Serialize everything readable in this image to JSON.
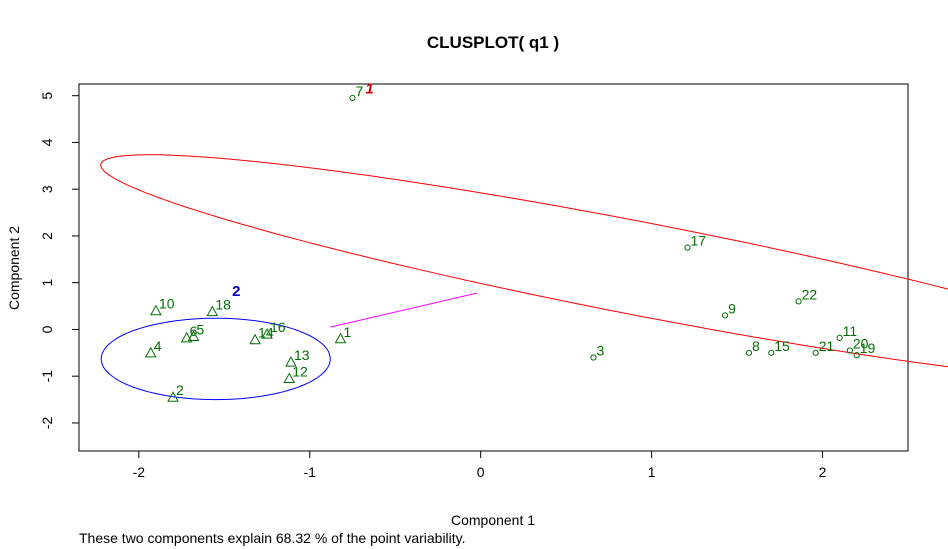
{
  "chart_data": {
    "type": "scatter",
    "title": "CLUSPLOT( q1 )",
    "xlabel": "Component 1",
    "ylabel": "Component 2",
    "xlim": [
      -2.35,
      2.5
    ],
    "ylim": [
      -2.6,
      5.25
    ],
    "xticks": [
      -2,
      -1,
      0,
      1,
      2
    ],
    "yticks": [
      -2,
      -1,
      0,
      1,
      2,
      3,
      4,
      5
    ],
    "points": [
      {
        "label": "1",
        "x": -0.82,
        "y": -0.2,
        "cluster": 2
      },
      {
        "label": "2",
        "x": -1.8,
        "y": -1.45,
        "cluster": 2
      },
      {
        "label": "3",
        "x": 0.66,
        "y": -0.6,
        "cluster": 1
      },
      {
        "label": "4",
        "x": -1.93,
        "y": -0.5,
        "cluster": 2
      },
      {
        "label": "5",
        "x": -1.68,
        "y": -0.15,
        "cluster": 2
      },
      {
        "label": "6",
        "x": -1.72,
        "y": -0.18,
        "cluster": 2
      },
      {
        "label": "7",
        "x": -0.75,
        "y": 4.95,
        "cluster": 1
      },
      {
        "label": "8",
        "x": 1.57,
        "y": -0.5,
        "cluster": 1
      },
      {
        "label": "9",
        "x": 1.43,
        "y": 0.3,
        "cluster": 1
      },
      {
        "label": "10",
        "x": -1.9,
        "y": 0.4,
        "cluster": 2
      },
      {
        "label": "11",
        "x": 2.1,
        "y": -0.18,
        "cluster": 1
      },
      {
        "label": "12",
        "x": -1.12,
        "y": -1.05,
        "cluster": 2
      },
      {
        "label": "13",
        "x": -1.11,
        "y": -0.7,
        "cluster": 2
      },
      {
        "label": "14",
        "x": -1.32,
        "y": -0.22,
        "cluster": 2
      },
      {
        "label": "15",
        "x": 1.7,
        "y": -0.5,
        "cluster": 1
      },
      {
        "label": "16",
        "x": -1.25,
        "y": -0.1,
        "cluster": 2
      },
      {
        "label": "17",
        "x": 1.21,
        "y": 1.75,
        "cluster": 1
      },
      {
        "label": "18",
        "x": -1.57,
        "y": 0.38,
        "cluster": 2
      },
      {
        "label": "19",
        "x": 2.2,
        "y": -0.55,
        "cluster": 1
      },
      {
        "label": "20",
        "x": 2.16,
        "y": -0.45,
        "cluster": 1
      },
      {
        "label": "21",
        "x": 1.96,
        "y": -0.5,
        "cluster": 1
      },
      {
        "label": "22",
        "x": 1.86,
        "y": 0.6,
        "cluster": 1
      }
    ],
    "clusters": [
      {
        "id": 1,
        "label": "1",
        "color": "#ff0000",
        "label_color": "#cc0000",
        "ellipse": {
          "cx": 0.93,
          "cy": 1.3,
          "a": 3.9,
          "b": 0.82,
          "angle_deg": -37
        },
        "label_pos": {
          "x": -0.65,
          "y": 5.05
        }
      },
      {
        "id": 2,
        "label": "2",
        "color": "#0000ff",
        "label_color": "#0000cc",
        "ellipse": {
          "cx": -1.55,
          "cy": -0.63,
          "a": 0.67,
          "b": 0.87,
          "angle_deg": 0
        },
        "label_pos": {
          "x": -1.43,
          "y": 0.72
        }
      }
    ],
    "link": {
      "from": [
        -0.88,
        0.05
      ],
      "to": [
        -0.02,
        0.78
      ],
      "color": "#ff00ff"
    },
    "point_color": "#007000",
    "caption": "These two components explain 68.32 % of the point variability."
  }
}
